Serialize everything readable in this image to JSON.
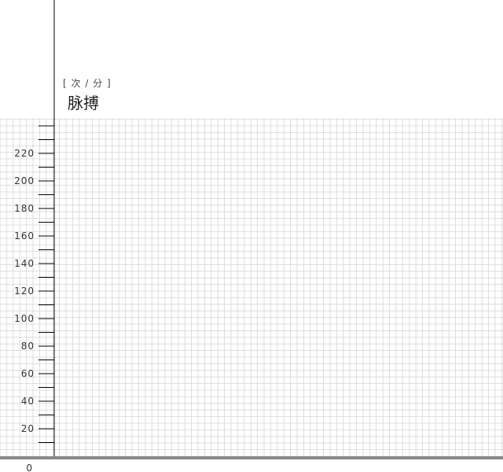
{
  "chart_data": {
    "type": "line",
    "title": "脉搏",
    "unit": "[ 次 / 分 ]",
    "ylabel": "脉搏",
    "y_tick_labels": [
      "0",
      "20",
      "40",
      "60",
      "80",
      "100",
      "120",
      "140",
      "160",
      "180",
      "200",
      "220"
    ],
    "y_ticks": [
      0,
      20,
      40,
      60,
      80,
      100,
      120,
      140,
      160,
      180,
      200,
      220
    ],
    "ylim": [
      0,
      240
    ],
    "minor_tick_step": 10,
    "grid": true,
    "series": [],
    "colors": {
      "grid": "#d6d6d6",
      "axis": "#000000",
      "baseline": "#888888",
      "text": "#333333"
    }
  }
}
